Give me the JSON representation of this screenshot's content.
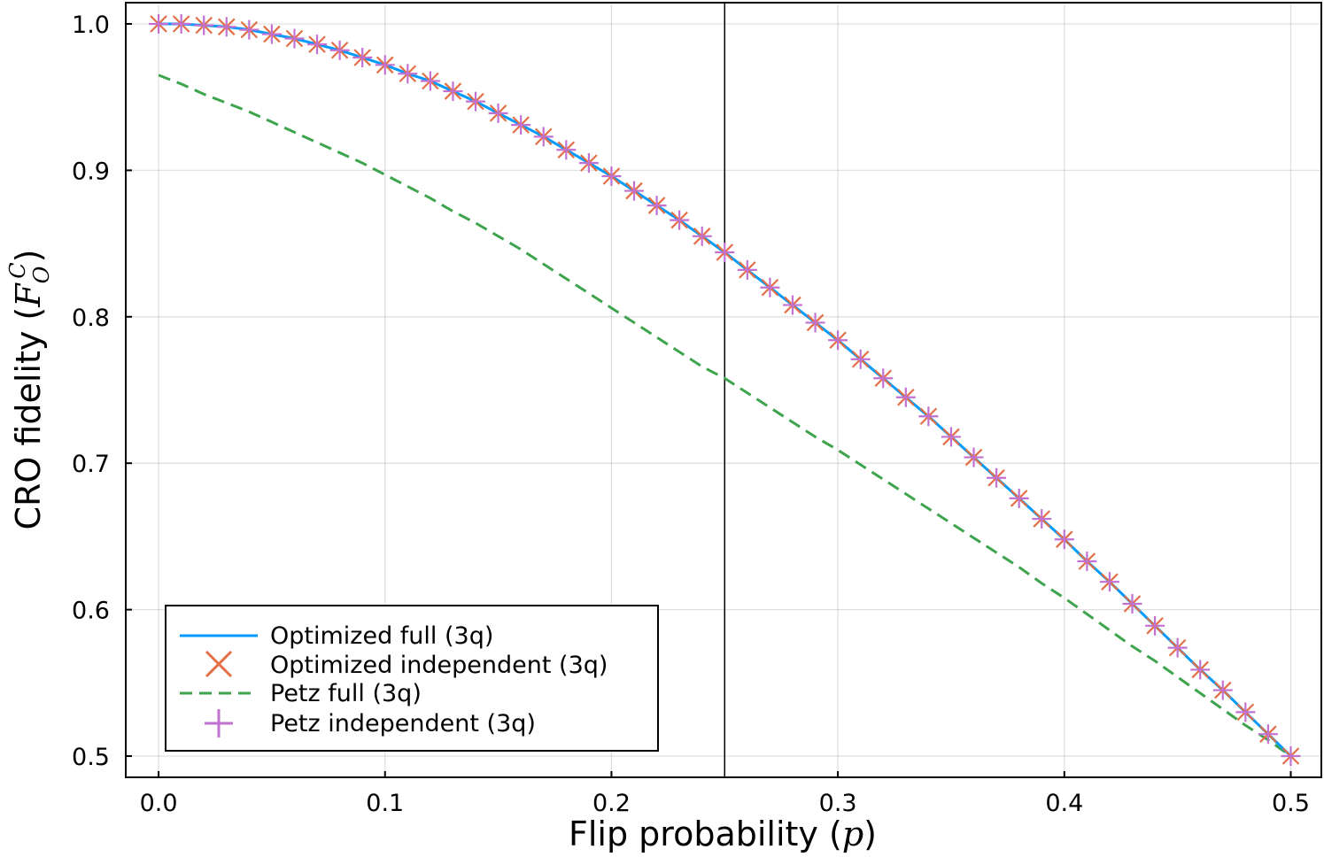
{
  "chart_data": {
    "type": "line",
    "xlabel": "Flip probability (p)",
    "ylabel": "CRO fidelity (F_O^C)",
    "xlim": [
      -0.0145,
      0.5135
    ],
    "ylim": [
      0.4855,
      1.0145
    ],
    "x_ticks": [
      0.0,
      0.1,
      0.2,
      0.3,
      0.4,
      0.5
    ],
    "x_tick_labels": [
      "0.0",
      "0.1",
      "0.2",
      "0.3",
      "0.4",
      "0.5"
    ],
    "y_ticks": [
      0.5,
      0.6,
      0.7,
      0.8,
      0.9,
      1.0
    ],
    "y_tick_labels": [
      "0.5",
      "0.6",
      "0.7",
      "0.8",
      "0.9",
      "1.0"
    ],
    "grid": true,
    "legend_position": "bottom-left",
    "vertical_line": {
      "x": 0.25
    },
    "x": [
      0.0,
      0.01,
      0.02,
      0.03,
      0.04,
      0.05,
      0.06,
      0.07,
      0.08,
      0.09,
      0.1,
      0.11,
      0.12,
      0.13,
      0.14,
      0.15,
      0.16,
      0.17,
      0.18,
      0.19,
      0.2,
      0.21,
      0.22,
      0.23,
      0.24,
      0.25,
      0.26,
      0.27,
      0.28,
      0.29,
      0.3,
      0.31,
      0.32,
      0.33,
      0.34,
      0.35,
      0.36,
      0.37,
      0.38,
      0.39,
      0.4,
      0.41,
      0.42,
      0.43,
      0.44,
      0.45,
      0.46,
      0.47,
      0.48,
      0.49,
      0.5
    ],
    "series": [
      {
        "name": "Optimized full (3q)",
        "style": "line",
        "color": "#009AFA",
        "values": [
          1.0,
          1.0,
          0.999,
          0.998,
          0.996,
          0.993,
          0.99,
          0.986,
          0.982,
          0.977,
          0.972,
          0.966,
          0.961,
          0.954,
          0.947,
          0.939,
          0.931,
          0.923,
          0.914,
          0.905,
          0.896,
          0.886,
          0.876,
          0.866,
          0.855,
          0.844,
          0.832,
          0.82,
          0.808,
          0.796,
          0.784,
          0.771,
          0.758,
          0.745,
          0.732,
          0.718,
          0.704,
          0.69,
          0.676,
          0.662,
          0.648,
          0.633,
          0.619,
          0.604,
          0.589,
          0.574,
          0.559,
          0.545,
          0.53,
          0.515,
          0.5
        ]
      },
      {
        "name": "Optimized independent (3q)",
        "style": "x-marker",
        "color": "#E26F46",
        "values": [
          1.0,
          1.0,
          0.999,
          0.998,
          0.996,
          0.993,
          0.99,
          0.986,
          0.982,
          0.977,
          0.972,
          0.966,
          0.961,
          0.954,
          0.947,
          0.939,
          0.931,
          0.923,
          0.914,
          0.905,
          0.896,
          0.886,
          0.876,
          0.866,
          0.855,
          0.844,
          0.832,
          0.82,
          0.808,
          0.796,
          0.784,
          0.771,
          0.758,
          0.745,
          0.732,
          0.718,
          0.704,
          0.69,
          0.676,
          0.662,
          0.648,
          0.633,
          0.619,
          0.604,
          0.589,
          0.574,
          0.559,
          0.545,
          0.53,
          0.515,
          0.5
        ]
      },
      {
        "name": "Petz full (3q)",
        "style": "dashed-line",
        "color": "#3EA44E",
        "values": [
          0.965,
          0.959,
          0.952,
          0.946,
          0.94,
          0.933,
          0.926,
          0.919,
          0.912,
          0.905,
          0.897,
          0.889,
          0.881,
          0.872,
          0.864,
          0.855,
          0.846,
          0.836,
          0.826,
          0.816,
          0.806,
          0.796,
          0.786,
          0.776,
          0.766,
          0.758,
          0.748,
          0.738,
          0.728,
          0.718,
          0.709,
          0.699,
          0.689,
          0.679,
          0.669,
          0.659,
          0.649,
          0.639,
          0.629,
          0.618,
          0.608,
          0.597,
          0.586,
          0.575,
          0.565,
          0.554,
          0.543,
          0.532,
          0.521,
          0.511,
          0.5
        ]
      },
      {
        "name": "Petz independent (3q)",
        "style": "plus-marker",
        "color": "#C271D2",
        "values": [
          1.0,
          1.0,
          0.999,
          0.998,
          0.996,
          0.993,
          0.99,
          0.986,
          0.982,
          0.977,
          0.972,
          0.966,
          0.961,
          0.954,
          0.947,
          0.939,
          0.931,
          0.923,
          0.914,
          0.905,
          0.896,
          0.886,
          0.876,
          0.866,
          0.855,
          0.844,
          0.832,
          0.82,
          0.808,
          0.796,
          0.784,
          0.771,
          0.758,
          0.745,
          0.732,
          0.718,
          0.704,
          0.69,
          0.676,
          0.662,
          0.648,
          0.633,
          0.619,
          0.604,
          0.589,
          0.574,
          0.559,
          0.545,
          0.53,
          0.515,
          0.5
        ]
      }
    ]
  }
}
